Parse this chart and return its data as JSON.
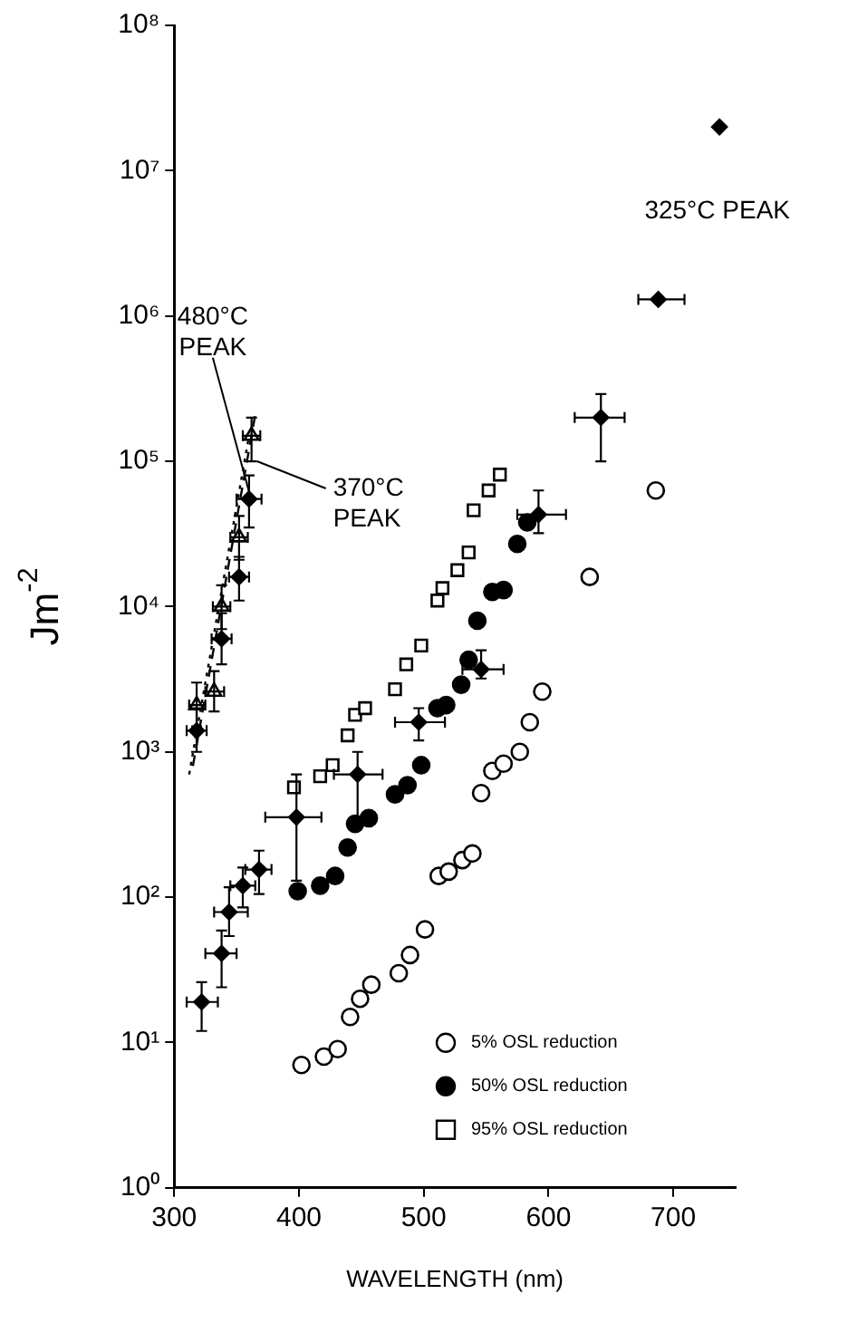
{
  "chart_data": {
    "type": "scatter",
    "xlabel": "WAVELENGTH (nm)",
    "ylabel": "Jm$^{-2}$",
    "log": "y",
    "grid": false,
    "legend": "bottom right",
    "xlim": [
      300,
      750
    ],
    "xticks": [
      300,
      400,
      500,
      600,
      700
    ],
    "ylim": [
      1,
      100000000
    ],
    "yticks": [
      {
        "value": 1,
        "label": "10⁰"
      },
      {
        "value": 10,
        "label": "10¹"
      },
      {
        "value": 100,
        "label": "10²"
      },
      {
        "value": 1000,
        "label": "10³"
      },
      {
        "value": 10000,
        "label": "10⁴"
      },
      {
        "value": 100000,
        "label": "10⁵"
      },
      {
        "value": 1000000,
        "label": "10⁶"
      },
      {
        "value": 10000000,
        "label": "10⁷"
      },
      {
        "value": 100000000,
        "label": "10⁸"
      }
    ],
    "series": [
      {
        "name": "5% OSL reduction",
        "color": "#ffffff",
        "marker": "circle",
        "x": [
          402,
          420,
          431,
          441,
          449,
          458,
          480,
          489,
          501,
          512,
          520,
          531,
          539,
          546,
          555,
          564,
          577,
          585,
          595,
          633,
          686
        ],
        "values": [
          7,
          8,
          9,
          15,
          20,
          25,
          30,
          40,
          60,
          140,
          150,
          180,
          200,
          520,
          740,
          830,
          1000,
          1600,
          2600,
          16000,
          63000
        ]
      },
      {
        "name": "50% OSL reduction",
        "color": "#000000",
        "marker": "circle",
        "x": [
          399,
          417,
          429,
          439,
          445,
          456,
          477,
          487,
          498,
          511,
          518,
          530,
          536,
          543,
          555,
          564,
          575,
          583
        ],
        "values": [
          110,
          120,
          140,
          220,
          320,
          350,
          510,
          590,
          810,
          2000,
          2100,
          2900,
          4300,
          8000,
          12600,
          13000,
          27000,
          38000
        ]
      },
      {
        "name": "95% OSL reduction",
        "color": "#ffffff",
        "marker": "square",
        "x": [
          396,
          417,
          427,
          439,
          445,
          453,
          477,
          486,
          498,
          511,
          515,
          527,
          536,
          540,
          552,
          561
        ],
        "values": [
          570,
          680,
          810,
          1300,
          1800,
          2000,
          2700,
          4000,
          5400,
          11000,
          13400,
          17800,
          23600,
          46000,
          63000,
          81000
        ]
      },
      {
        "color": "#000000",
        "marker": "diamond",
        "x": [
          322,
          338,
          344,
          355,
          368,
          398,
          447,
          496,
          546,
          592,
          642,
          688,
          737
        ],
        "values": [
          19,
          41,
          79,
          120,
          155,
          355,
          700,
          1600,
          3700,
          43000,
          200000,
          1300000,
          20000000
        ],
        "errors": [
          [
            12,
            26
          ],
          [
            24,
            59
          ],
          [
            54,
            117
          ],
          [
            85,
            160
          ],
          [
            105,
            209
          ],
          [
            130,
            700
          ],
          [
            316,
            1000
          ],
          [
            1200,
            2000
          ],
          [
            3200,
            5000
          ],
          [
            32000,
            63000
          ],
          [
            100000,
            290000
          ],
          null,
          null
        ],
        "xerrors": [
          [
            310,
            335
          ],
          [
            325,
            350
          ],
          [
            332,
            359
          ],
          [
            345,
            365
          ],
          [
            357,
            378
          ],
          [
            373,
            418
          ],
          [
            428,
            467
          ],
          [
            477,
            517
          ],
          [
            531,
            564
          ],
          [
            575,
            614
          ],
          [
            621,
            661
          ],
          [
            672,
            709
          ],
          null
        ]
      },
      {
        "color": "#000000",
        "marker": "diamond",
        "x": [
          318,
          338,
          352,
          360
        ],
        "values": [
          1400,
          6000,
          16000,
          55000
        ],
        "errors": [
          [
            1000,
            2000
          ],
          [
            4000,
            9000
          ],
          [
            11000,
            22000
          ],
          [
            35000,
            80000
          ]
        ],
        "xerrors": [
          [
            310,
            326
          ],
          [
            330,
            346
          ],
          [
            344,
            360
          ],
          [
            350,
            370
          ]
        ]
      },
      {
        "color": "#ffffff",
        "marker": "triangle",
        "x": [
          318,
          332,
          338,
          352,
          362
        ],
        "values": [
          2100,
          2600,
          10000,
          30000,
          150000
        ],
        "errors": [
          [
            1500,
            3000
          ],
          [
            1900,
            3600
          ],
          [
            7000,
            14000
          ],
          [
            21000,
            42000
          ],
          [
            100000,
            200000
          ]
        ],
        "xerrors": [
          [
            312,
            325
          ],
          [
            325,
            340
          ],
          [
            331,
            345
          ],
          [
            345,
            359
          ],
          [
            355,
            369
          ]
        ]
      },
      {
        "type": "line",
        "color": "#000000",
        "line_style": "dashed",
        "x": [
          315,
          365
        ],
        "values": [
          800,
          210000
        ]
      },
      {
        "type": "line",
        "color": "#000000",
        "line_style": "dotted",
        "x": [
          312,
          360
        ],
        "values": [
          700,
          150000
        ]
      }
    ],
    "annotations": [
      {
        "text": "480°C PEAK",
        "x": 360,
        "y": 55000
      },
      {
        "text": "370°C PEAK",
        "x": 362,
        "y": 100000
      },
      "325°C PEAK"
    ]
  }
}
